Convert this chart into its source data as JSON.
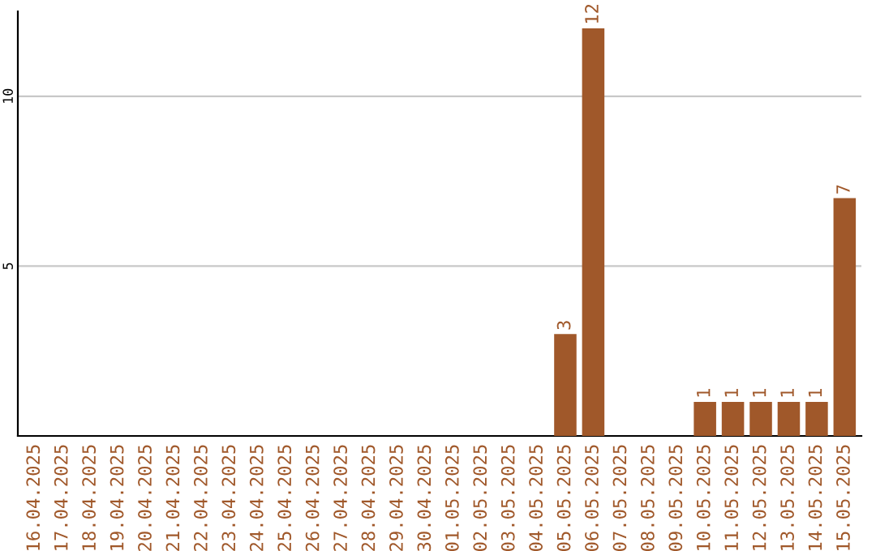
{
  "chart_data": {
    "type": "bar",
    "categories": [
      "16.04.2025",
      "17.04.2025",
      "18.04.2025",
      "19.04.2025",
      "20.04.2025",
      "21.04.2025",
      "22.04.2025",
      "23.04.2025",
      "24.04.2025",
      "25.04.2025",
      "26.04.2025",
      "27.04.2025",
      "28.04.2025",
      "29.04.2025",
      "30.04.2025",
      "01.05.2025",
      "02.05.2025",
      "03.05.2025",
      "04.05.2025",
      "05.05.2025",
      "06.05.2025",
      "07.05.2025",
      "08.05.2025",
      "09.05.2025",
      "10.05.2025",
      "11.05.2025",
      "12.05.2025",
      "13.05.2025",
      "14.05.2025",
      "15.05.2025"
    ],
    "values": [
      0,
      0,
      0,
      0,
      0,
      0,
      0,
      0,
      0,
      0,
      0,
      0,
      0,
      0,
      0,
      0,
      0,
      0,
      0,
      3,
      12,
      0,
      0,
      0,
      1,
      1,
      1,
      1,
      1,
      7
    ],
    "value_labels": [
      null,
      null,
      null,
      null,
      null,
      null,
      null,
      null,
      null,
      null,
      null,
      null,
      null,
      null,
      null,
      null,
      null,
      null,
      null,
      "3",
      "12",
      null,
      null,
      null,
      "1",
      "1",
      "1",
      "1",
      "1",
      "7"
    ],
    "color": "#a0582a",
    "ylim": [
      0,
      12.5
    ],
    "yticks": [
      5,
      10
    ],
    "grid": "y"
  }
}
